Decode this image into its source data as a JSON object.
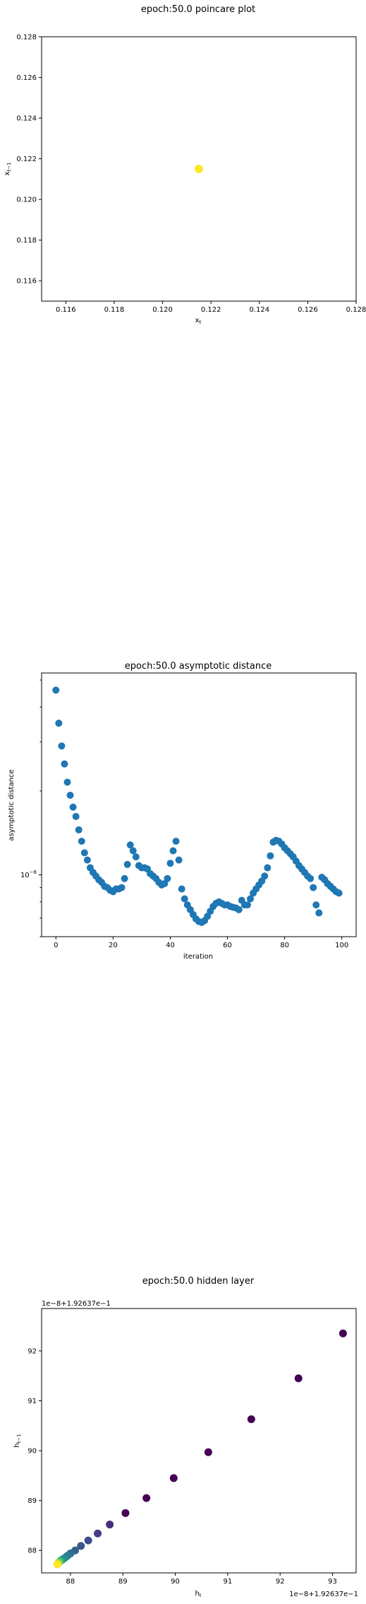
{
  "chart_data": [
    {
      "type": "scatter",
      "title": "epoch:50.0 poincare plot",
      "xlabel": "x_t",
      "ylabel": "x_{t-1}",
      "xlim": [
        0.115,
        0.128
      ],
      "ylim": [
        0.115,
        0.128
      ],
      "xticks": [
        0.116,
        0.118,
        0.12,
        0.122,
        0.124,
        0.126,
        0.128
      ],
      "yticks": [
        0.116,
        0.118,
        0.12,
        0.122,
        0.124,
        0.126,
        0.128
      ],
      "xtick_labels": [
        "0.116",
        "0.118",
        "0.120",
        "0.122",
        "0.124",
        "0.126",
        "0.128"
      ],
      "ytick_labels": [
        "0.116",
        "0.118",
        "0.120",
        "0.122",
        "0.124",
        "0.126",
        "0.128"
      ],
      "points": [
        {
          "x": 0.1215,
          "y": 0.1215
        }
      ],
      "color": "#fde725"
    },
    {
      "type": "scatter",
      "title": "epoch:50.0 asymptotic distance",
      "xlabel": "iteration",
      "ylabel": "asymptotic distance",
      "xlim": [
        -5,
        105
      ],
      "xticks": [
        0,
        20,
        40,
        60,
        80,
        100
      ],
      "xtick_labels": [
        "0",
        "20",
        "40",
        "60",
        "80",
        "100"
      ],
      "yscale": "log",
      "ytick_labels": [
        "10^-6"
      ],
      "color": "#1f77b4",
      "x": [
        0,
        1,
        2,
        3,
        4,
        5,
        6,
        7,
        8,
        9,
        10,
        11,
        12,
        13,
        14,
        15,
        16,
        17,
        18,
        19,
        20,
        21,
        22,
        23,
        24,
        25,
        26,
        27,
        28,
        29,
        30,
        31,
        32,
        33,
        34,
        35,
        36,
        37,
        38,
        39,
        40,
        41,
        42,
        43,
        44,
        45,
        46,
        47,
        48,
        49,
        50,
        51,
        52,
        53,
        54,
        55,
        56,
        57,
        58,
        59,
        60,
        61,
        62,
        63,
        64,
        65,
        66,
        67,
        68,
        69,
        70,
        71,
        72,
        73,
        74,
        75,
        76,
        77,
        78,
        79,
        80,
        81,
        82,
        83,
        84,
        85,
        86,
        87,
        88,
        89,
        90,
        91,
        92,
        93,
        94,
        95,
        96,
        97,
        98,
        99
      ],
      "y": [
        4.6,
        3.5,
        2.9,
        2.5,
        2.15,
        1.93,
        1.75,
        1.62,
        1.45,
        1.32,
        1.2,
        1.13,
        1.06,
        1.02,
        0.99,
        0.96,
        0.94,
        0.91,
        0.9,
        0.88,
        0.87,
        0.89,
        0.89,
        0.9,
        0.97,
        1.09,
        1.28,
        1.22,
        1.16,
        1.08,
        1.06,
        1.06,
        1.05,
        1.01,
        0.99,
        0.97,
        0.94,
        0.92,
        0.93,
        0.97,
        1.1,
        1.22,
        1.32,
        1.13,
        0.89,
        0.82,
        0.78,
        0.75,
        0.72,
        0.695,
        0.68,
        0.675,
        0.685,
        0.71,
        0.74,
        0.77,
        0.79,
        0.8,
        0.79,
        0.78,
        0.78,
        0.77,
        0.765,
        0.76,
        0.75,
        0.81,
        0.78,
        0.78,
        0.82,
        0.86,
        0.89,
        0.92,
        0.95,
        0.99,
        1.06,
        1.17,
        1.31,
        1.33,
        1.32,
        1.29,
        1.25,
        1.22,
        1.19,
        1.16,
        1.12,
        1.08,
        1.05,
        1.02,
        0.99,
        0.97,
        0.9,
        0.78,
        0.73,
        0.98,
        0.96,
        0.93,
        0.91,
        0.89,
        0.87,
        0.86
      ]
    },
    {
      "type": "scatter",
      "title": "epoch:50.0 hidden layer",
      "xlabel": "h_t",
      "ylabel": "h_{t-1}",
      "x_offset_label": "1e−8+1.92637e−1",
      "y_offset_label": "1e−8+1.92637e−1",
      "xlim": [
        87.45,
        93.45
      ],
      "ylim": [
        87.55,
        92.85
      ],
      "xticks": [
        88,
        89,
        90,
        91,
        92,
        93
      ],
      "yticks": [
        88,
        89,
        90,
        91,
        92
      ],
      "xtick_labels": [
        "88",
        "89",
        "90",
        "91",
        "92",
        "93"
      ],
      "ytick_labels": [
        "88",
        "89",
        "90",
        "91",
        "92"
      ],
      "points": [
        {
          "x": 93.2,
          "y": 92.35,
          "color": "#440154"
        },
        {
          "x": 92.35,
          "y": 91.45,
          "color": "#440154"
        },
        {
          "x": 91.45,
          "y": 90.63,
          "color": "#440154"
        },
        {
          "x": 90.63,
          "y": 89.97,
          "color": "#440154"
        },
        {
          "x": 89.97,
          "y": 89.45,
          "color": "#440154"
        },
        {
          "x": 89.45,
          "y": 89.05,
          "color": "#440154"
        },
        {
          "x": 89.05,
          "y": 88.75,
          "color": "#440154"
        },
        {
          "x": 88.75,
          "y": 88.52,
          "color": "#46317e"
        },
        {
          "x": 88.52,
          "y": 88.34,
          "color": "#433e85"
        },
        {
          "x": 88.34,
          "y": 88.2,
          "color": "#3d4d8a"
        },
        {
          "x": 88.2,
          "y": 88.09,
          "color": "#38598c"
        },
        {
          "x": 88.09,
          "y": 88.0,
          "color": "#33638d"
        },
        {
          "x": 88.0,
          "y": 87.94,
          "color": "#2d708e"
        },
        {
          "x": 87.94,
          "y": 87.89,
          "color": "#287c8e"
        },
        {
          "x": 87.89,
          "y": 87.85,
          "color": "#23898e"
        },
        {
          "x": 87.85,
          "y": 87.82,
          "color": "#1f968b"
        },
        {
          "x": 87.82,
          "y": 87.8,
          "color": "#20a386"
        },
        {
          "x": 87.8,
          "y": 87.78,
          "color": "#35b779"
        },
        {
          "x": 87.78,
          "y": 87.76,
          "color": "#6ece58"
        },
        {
          "x": 87.76,
          "y": 87.74,
          "color": "#b5de2b"
        },
        {
          "x": 87.75,
          "y": 87.72,
          "color": "#fde725"
        }
      ]
    }
  ]
}
